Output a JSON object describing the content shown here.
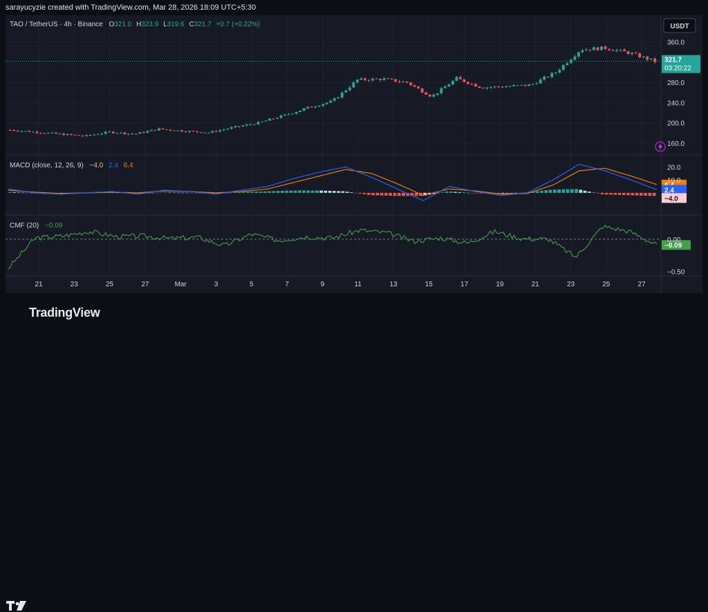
{
  "header": {
    "credit": "sarayucyzie created with TradingView.com, Mar 28, 2026 18:09 UTC+5:30"
  },
  "currency": "USDT",
  "legend": {
    "symbol": "TAO / TetherUS · 4h · Binance",
    "open_label": "O",
    "open": "321.0",
    "high_label": "H",
    "high": "323.9",
    "low_label": "L",
    "low": "319.6",
    "close_label": "C",
    "close": "321.7",
    "change": "+0.7 (+0.22%)"
  },
  "price_badge": {
    "price": "321.7",
    "countdown": "03:20:22"
  },
  "macd_legend": {
    "label": "MACD (close, 12, 26, 9)",
    "hist": "−4.0",
    "macd": "2.4",
    "signal": "6.4"
  },
  "cmf_legend": {
    "label": "CMF (20)",
    "value": "−0.09"
  },
  "brand": {
    "name": "TradingView"
  },
  "colors": {
    "up": "#26a69a",
    "down": "#ef5350",
    "macd": "#2962ff",
    "signal": "#f57c00",
    "cmf": "#43a047",
    "bg": "#161a25"
  },
  "chart_data": [
    {
      "type": "candlestick",
      "title": "TAO / TetherUS · 4h · Binance",
      "x_ticks": [
        "21",
        "23",
        "25",
        "27",
        "Mar",
        "3",
        "5",
        "7",
        "9",
        "11",
        "13",
        "15",
        "17",
        "19",
        "21",
        "23",
        "25",
        "27"
      ],
      "y_ticks": [
        "160.0",
        "200.0",
        "240.0",
        "280.0",
        "360.0"
      ],
      "ylim": [
        145,
        380
      ],
      "last_price": 321.7,
      "trend_points": {
        "x": [
          "Feb 20",
          "Feb 22",
          "Feb 24",
          "Feb 26",
          "Feb 28",
          "Mar 2",
          "Mar 4",
          "Mar 6",
          "Mar 8",
          "Mar 10",
          "Mar 12",
          "Mar 13",
          "Mar 14",
          "Mar 15",
          "Mar 16",
          "Mar 17",
          "Mar 18",
          "Mar 19",
          "Mar 20",
          "Mar 21",
          "Mar 22",
          "Mar 23",
          "Mar 24",
          "Mar 25",
          "Mar 26",
          "Mar 27",
          "Mar 28"
        ],
        "close": [
          186,
          182,
          178,
          174,
          182,
          178,
          188,
          184,
          181,
          191,
          200,
          214,
          230,
          243,
          285,
          287,
          280,
          252,
          288,
          270,
          272,
          275,
          300,
          345,
          348,
          338,
          321.7
        ]
      }
    },
    {
      "type": "line",
      "title": "MACD (close, 12, 26, 9)",
      "y_ticks": [
        "20.0",
        "10.0"
      ],
      "ylim": [
        -15,
        25
      ],
      "series": [
        {
          "name": "MACD",
          "values": [
            3,
            0,
            -1,
            0,
            1,
            -1,
            2,
            1,
            -1,
            2,
            5,
            11,
            16,
            20,
            12,
            3,
            -6,
            5,
            1,
            -2,
            0,
            10,
            22,
            17,
            10,
            2.4
          ]
        },
        {
          "name": "Signal",
          "values": [
            2,
            0.5,
            -0.5,
            0,
            0.5,
            0,
            1.5,
            1,
            0,
            1,
            3,
            8,
            13,
            18,
            15,
            7,
            -2,
            3,
            1.5,
            -1,
            -0.5,
            6,
            17,
            19,
            13,
            6.4
          ]
        }
      ],
      "histogram_last": -4.0
    },
    {
      "type": "line",
      "title": "CMF (20)",
      "y_ticks": [
        "0.00",
        "−0.50"
      ],
      "ylim": [
        -0.55,
        0.3
      ],
      "series": [
        {
          "name": "CMF",
          "values": [
            -0.45,
            0.02,
            0.05,
            0.12,
            0.04,
            0.05,
            0.01,
            0.03,
            -0.1,
            0.08,
            -0.02,
            0.04,
            0.02,
            0.14,
            0.1,
            -0.03,
            0.02,
            -0.06,
            0.12,
            0.01,
            0.0,
            -0.28,
            0.2,
            0.12,
            -0.09
          ]
        }
      ]
    }
  ]
}
